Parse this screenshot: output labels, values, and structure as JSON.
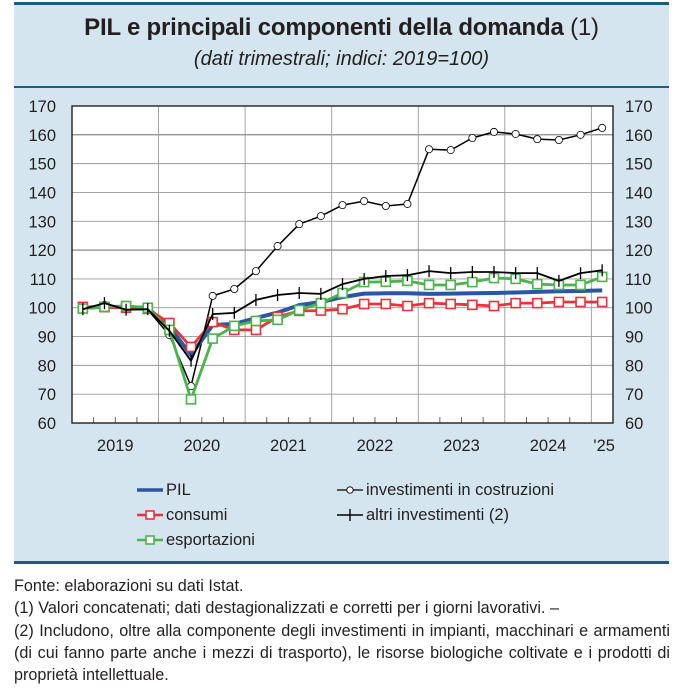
{
  "header": {
    "title": "PIL e principali componenti della domanda",
    "title_note": "(1)",
    "subtitle": "(dati trimestrali; indici: 2019=100)"
  },
  "colors": {
    "panel_bg": "#d5e5ef",
    "rule": "#1b5e7b",
    "pil": "#2957a4",
    "consumi": "#e8333a",
    "esportazioni": "#4bb34b",
    "costruzioni": "#000000",
    "altri": "#000000"
  },
  "chart_data": {
    "type": "line",
    "title": "PIL e principali componenti della domanda (1)",
    "subtitle": "(dati trimestrali; indici: 2019=100)",
    "xlabel": "",
    "ylabel": "",
    "ylim": [
      60,
      170
    ],
    "yticks": [
      "60",
      "70",
      "80",
      "90",
      "100",
      "110",
      "120",
      "130",
      "140",
      "150",
      "160",
      "170"
    ],
    "ytick_values": [
      60,
      70,
      80,
      90,
      100,
      110,
      120,
      130,
      140,
      150,
      160,
      170
    ],
    "grid": true,
    "frequency": "quarterly",
    "x": [
      "2019Q1",
      "2019Q2",
      "2019Q3",
      "2019Q4",
      "2020Q1",
      "2020Q2",
      "2020Q3",
      "2020Q4",
      "2021Q1",
      "2021Q2",
      "2021Q3",
      "2021Q4",
      "2022Q1",
      "2022Q2",
      "2022Q3",
      "2022Q4",
      "2023Q1",
      "2023Q2",
      "2023Q3",
      "2023Q4",
      "2024Q1",
      "2024Q2",
      "2024Q3",
      "2024Q4",
      "2025Q1"
    ],
    "year_labels": [
      "2019",
      "2020",
      "2021",
      "2022",
      "2023",
      "2024",
      "'25"
    ],
    "legend_position": "bottom",
    "series": [
      {
        "key": "pil",
        "name": "PIL",
        "marker": "none",
        "values": [
          100.0,
          100.3,
          100.3,
          99.9,
          93.3,
          83.6,
          94.0,
          94.4,
          96.4,
          98.3,
          100.9,
          102.0,
          103.7,
          104.9,
          105.0,
          105.0,
          104.8,
          104.9,
          105.0,
          105.1,
          105.3,
          105.5,
          105.7,
          105.8,
          106.0
        ]
      },
      {
        "key": "consumi",
        "name": "consumi",
        "marker": "square",
        "values": [
          100.3,
          100.2,
          100.0,
          99.6,
          94.7,
          86.4,
          95.0,
          92.3,
          92.3,
          96.8,
          98.9,
          99.0,
          99.5,
          101.3,
          101.3,
          100.6,
          101.6,
          101.3,
          101.0,
          100.6,
          101.6,
          101.6,
          102.0,
          102.0,
          102.0
        ]
      },
      {
        "key": "esportazioni",
        "name": "esportazioni",
        "marker": "square",
        "values": [
          99.7,
          100.3,
          100.6,
          100.0,
          92.3,
          68.2,
          89.3,
          93.7,
          95.4,
          95.8,
          99.2,
          101.6,
          105.1,
          108.9,
          109.0,
          109.3,
          107.9,
          107.9,
          108.9,
          110.3,
          110.0,
          108.2,
          107.9,
          107.9,
          110.7
        ]
      },
      {
        "key": "costruzioni",
        "name": "investimenti in costruzioni",
        "marker": "circle",
        "values": [
          99.5,
          101.0,
          99.5,
          99.3,
          90.5,
          72.8,
          104.1,
          106.5,
          112.7,
          121.4,
          129.0,
          131.8,
          135.6,
          137.0,
          135.3,
          136.0,
          155.0,
          154.7,
          158.9,
          161.0,
          160.3,
          158.5,
          158.2,
          160.0,
          162.4
        ]
      },
      {
        "key": "altri",
        "name": "altri investimenti (2)",
        "marker": "plus",
        "values": [
          99.5,
          101.6,
          99.3,
          99.5,
          92.0,
          81.6,
          97.8,
          98.2,
          102.7,
          104.4,
          105.1,
          104.8,
          108.2,
          110.0,
          111.0,
          111.3,
          112.7,
          112.0,
          112.4,
          112.4,
          112.0,
          112.0,
          109.3,
          112.0,
          113.0
        ]
      }
    ]
  },
  "legend": {
    "items": [
      {
        "key": "pil",
        "label": "PIL"
      },
      {
        "key": "consumi",
        "label": "consumi"
      },
      {
        "key": "esportazioni",
        "label": "esportazioni"
      },
      {
        "key": "costruzioni",
        "label": "investimenti in costruzioni"
      },
      {
        "key": "altri",
        "label": "altri investimenti (2)"
      }
    ]
  },
  "footer": {
    "source": "Fonte: elaborazioni su dati Istat.",
    "note1": "(1) Valori concatenati; dati destagionalizzati e corretti per i giorni lavorativi. –",
    "note2": "(2) Includono, oltre alla componente degli investimenti in impianti, macchinari e armamenti (di cui fanno parte anche i mezzi di trasporto), le risorse biologiche coltivate e i prodotti di proprietà intellettuale."
  }
}
